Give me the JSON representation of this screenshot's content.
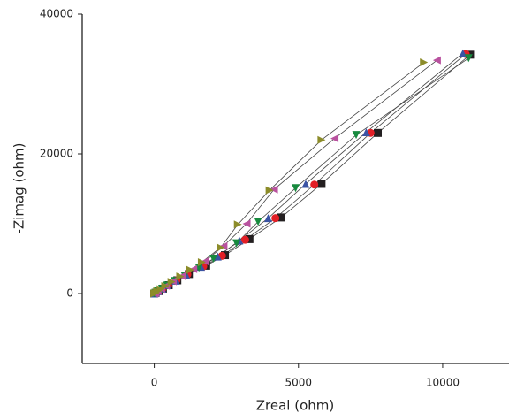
{
  "chart_data": {
    "type": "scatter-line",
    "x_label": "Zreal (ohm)",
    "y_label": "-Zimag (ohm)",
    "xlim": [
      -2500,
      12300
    ],
    "ylim": [
      -10000,
      40000
    ],
    "xticks": [
      0,
      5000,
      10000
    ],
    "yticks": [
      0,
      20000,
      40000
    ],
    "line_color": "#444444",
    "series": [
      {
        "color": "#231f20",
        "marker": "square",
        "x": [
          0,
          50,
          150,
          300,
          500,
          800,
          1200,
          1800,
          2450,
          3300,
          4400,
          5800,
          7750,
          10950
        ],
        "y": [
          0,
          100,
          350,
          700,
          1200,
          1900,
          2800,
          4000,
          5500,
          7800,
          10900,
          15700,
          23000,
          34200
        ]
      },
      {
        "color": "#e21f26",
        "marker": "circle",
        "x": [
          0,
          50,
          140,
          290,
          480,
          770,
          1150,
          1700,
          2350,
          3150,
          4200,
          5550,
          7500,
          10800
        ],
        "y": [
          0,
          100,
          350,
          700,
          1200,
          1900,
          2750,
          3900,
          5400,
          7700,
          10800,
          15600,
          23000,
          34300
        ]
      },
      {
        "color": "#3a53a4",
        "marker": "triangle-up",
        "x": [
          0,
          45,
          130,
          280,
          460,
          740,
          1100,
          1620,
          2200,
          2950,
          3950,
          5250,
          7350,
          10700
        ],
        "y": [
          0,
          100,
          350,
          700,
          1200,
          1850,
          2700,
          3850,
          5300,
          7600,
          10800,
          15700,
          23100,
          34400
        ]
      },
      {
        "color": "#178a3e",
        "marker": "triangle-down",
        "x": [
          0,
          45,
          125,
          270,
          440,
          710,
          1050,
          1550,
          2050,
          2850,
          3600,
          4900,
          7000,
          10900
        ],
        "y": [
          0,
          100,
          340,
          680,
          1150,
          1800,
          2600,
          3700,
          5000,
          7200,
          10300,
          15100,
          22700,
          33700
        ]
      },
      {
        "color": "#b9529f",
        "marker": "triangle-left",
        "x": [
          0,
          40,
          110,
          240,
          400,
          640,
          950,
          1350,
          1750,
          2400,
          3200,
          4150,
          6250,
          9800
        ],
        "y": [
          0,
          100,
          330,
          660,
          1100,
          1750,
          2500,
          3500,
          4600,
          6800,
          10000,
          14900,
          22200,
          33400
        ]
      },
      {
        "color": "#8c8c2a",
        "marker": "triangle-right",
        "x": [
          0,
          40,
          100,
          220,
          380,
          600,
          900,
          1250,
          1650,
          2300,
          2900,
          4000,
          5800,
          9350
        ],
        "y": [
          0,
          100,
          320,
          640,
          1080,
          1700,
          2450,
          3400,
          4500,
          6600,
          9900,
          14800,
          22000,
          33100
        ]
      }
    ]
  }
}
